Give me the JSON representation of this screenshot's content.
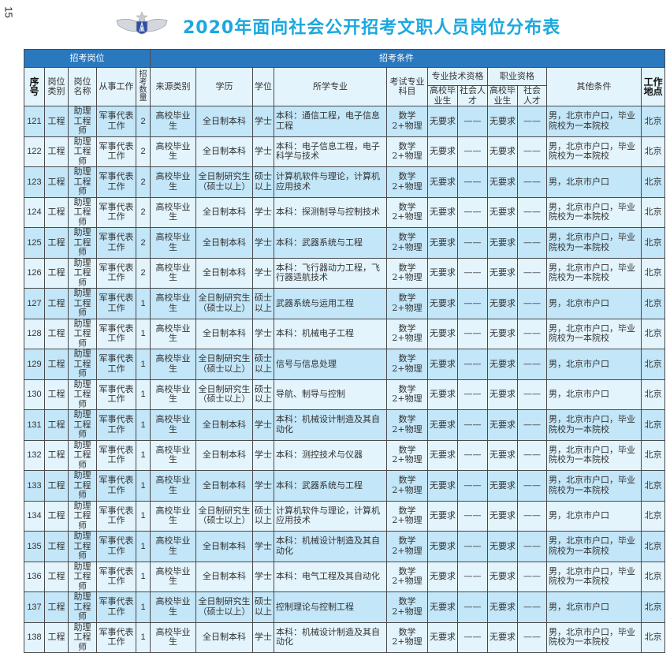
{
  "page_number": "15",
  "title": "2020年面向社会公开招考文职人员岗位分布表",
  "colors": {
    "header_band": "#2a78bd",
    "title": "#1ba8e0",
    "row_dark": "#c3e6f8",
    "row_light": "#e3f4fc"
  },
  "header": {
    "group_position": "招考岗位",
    "group_conditions": "招考条件",
    "seq": "序号",
    "category": "岗位类别",
    "name": "岗位名称",
    "work": "从事工作",
    "count": "招考数量",
    "source": "来源类别",
    "education": "学历",
    "degree": "学位",
    "major": "所学专业",
    "exam": "考试专业科目",
    "tech_qual": "专业技术资格",
    "job_qual": "职业资格",
    "graduate": "高校毕业生",
    "social": "社会人才",
    "other": "其他条件",
    "location": "工作地点"
  },
  "rows": [
    {
      "seq": "121",
      "category": "工程",
      "name": "助理工程师",
      "work": "军事代表工作",
      "count": "2",
      "source": "高校毕业生",
      "education": "全日制本科",
      "degree": "学士",
      "major": "本科：通信工程，电子信息工程",
      "exam": "数学2+物理",
      "tech_grad": "无要求",
      "tech_social": "——",
      "job_grad": "无要求",
      "job_social": "——",
      "other": "男，北京市户口，毕业院校为一本院校",
      "location": "北京"
    },
    {
      "seq": "122",
      "category": "工程",
      "name": "助理工程师",
      "work": "军事代表工作",
      "count": "2",
      "source": "高校毕业生",
      "education": "全日制本科",
      "degree": "学士",
      "major": "本科：电子信息工程，电子科学与技术",
      "exam": "数学2+物理",
      "tech_grad": "无要求",
      "tech_social": "——",
      "job_grad": "无要求",
      "job_social": "——",
      "other": "男，北京市户口，毕业院校为一本院校",
      "location": "北京"
    },
    {
      "seq": "123",
      "category": "工程",
      "name": "助理工程师",
      "work": "军事代表工作",
      "count": "2",
      "source": "高校毕业生",
      "education": "全日制研究生（硕士以上）",
      "degree": "硕士以上",
      "major": "计算机软件与理论，计算机应用技术",
      "exam": "数学2+物理",
      "tech_grad": "无要求",
      "tech_social": "——",
      "job_grad": "无要求",
      "job_social": "——",
      "other": "男，北京市户口",
      "location": "北京"
    },
    {
      "seq": "124",
      "category": "工程",
      "name": "助理工程师",
      "work": "军事代表工作",
      "count": "2",
      "source": "高校毕业生",
      "education": "全日制本科",
      "degree": "学士",
      "major": "本科：探测制导与控制技术",
      "exam": "数学2+物理",
      "tech_grad": "无要求",
      "tech_social": "——",
      "job_grad": "无要求",
      "job_social": "——",
      "other": "男，北京市户口，毕业院校为一本院校",
      "location": "北京"
    },
    {
      "seq": "125",
      "category": "工程",
      "name": "助理工程师",
      "work": "军事代表工作",
      "count": "2",
      "source": "高校毕业生",
      "education": "全日制本科",
      "degree": "学士",
      "major": "本科：武器系统与工程",
      "exam": "数学2+物理",
      "tech_grad": "无要求",
      "tech_social": "——",
      "job_grad": "无要求",
      "job_social": "——",
      "other": "男，北京市户口，毕业院校为一本院校",
      "location": "北京"
    },
    {
      "seq": "126",
      "category": "工程",
      "name": "助理工程师",
      "work": "军事代表工作",
      "count": "2",
      "source": "高校毕业生",
      "education": "全日制本科",
      "degree": "学士",
      "major": "本科：飞行器动力工程，飞行器适航技术",
      "exam": "数学2+物理",
      "tech_grad": "无要求",
      "tech_social": "——",
      "job_grad": "无要求",
      "job_social": "——",
      "other": "男，北京市户口，毕业院校为一本院校",
      "location": "北京"
    },
    {
      "seq": "127",
      "category": "工程",
      "name": "助理工程师",
      "work": "军事代表工作",
      "count": "1",
      "source": "高校毕业生",
      "education": "全日制研究生（硕士以上）",
      "degree": "硕士以上",
      "major": "武器系统与运用工程",
      "exam": "数学2+物理",
      "tech_grad": "无要求",
      "tech_social": "——",
      "job_grad": "无要求",
      "job_social": "——",
      "other": "男，北京市户口",
      "location": "北京"
    },
    {
      "seq": "128",
      "category": "工程",
      "name": "助理工程师",
      "work": "军事代表工作",
      "count": "1",
      "source": "高校毕业生",
      "education": "全日制本科",
      "degree": "学士",
      "major": "本科：机械电子工程",
      "exam": "数学2+物理",
      "tech_grad": "无要求",
      "tech_social": "——",
      "job_grad": "无要求",
      "job_social": "——",
      "other": "男，北京市户口，毕业院校为一本院校",
      "location": "北京"
    },
    {
      "seq": "129",
      "category": "工程",
      "name": "助理工程师",
      "work": "军事代表工作",
      "count": "1",
      "source": "高校毕业生",
      "education": "全日制研究生（硕士以上）",
      "degree": "硕士以上",
      "major": "信号与信息处理",
      "exam": "数学2+物理",
      "tech_grad": "无要求",
      "tech_social": "——",
      "job_grad": "无要求",
      "job_social": "——",
      "other": "男，北京市户口",
      "location": "北京"
    },
    {
      "seq": "130",
      "category": "工程",
      "name": "助理工程师",
      "work": "军事代表工作",
      "count": "1",
      "source": "高校毕业生",
      "education": "全日制研究生（硕士以上）",
      "degree": "硕士以上",
      "major": "导航、制导与控制",
      "exam": "数学2+物理",
      "tech_grad": "无要求",
      "tech_social": "——",
      "job_grad": "无要求",
      "job_social": "——",
      "other": "男，北京市户口",
      "location": "北京"
    },
    {
      "seq": "131",
      "category": "工程",
      "name": "助理工程师",
      "work": "军事代表工作",
      "count": "1",
      "source": "高校毕业生",
      "education": "全日制本科",
      "degree": "学士",
      "major": "本科：机械设计制造及其自动化",
      "exam": "数学2+物理",
      "tech_grad": "无要求",
      "tech_social": "——",
      "job_grad": "无要求",
      "job_social": "——",
      "other": "男，北京市户口，毕业院校为一本院校",
      "location": "北京"
    },
    {
      "seq": "132",
      "category": "工程",
      "name": "助理工程师",
      "work": "军事代表工作",
      "count": "1",
      "source": "高校毕业生",
      "education": "全日制本科",
      "degree": "学士",
      "major": "本科：测控技术与仪器",
      "exam": "数学2+物理",
      "tech_grad": "无要求",
      "tech_social": "——",
      "job_grad": "无要求",
      "job_social": "——",
      "other": "男，北京市户口，毕业院校为一本院校",
      "location": "北京"
    },
    {
      "seq": "133",
      "category": "工程",
      "name": "助理工程师",
      "work": "军事代表工作",
      "count": "1",
      "source": "高校毕业生",
      "education": "全日制本科",
      "degree": "学士",
      "major": "本科：武器系统与工程",
      "exam": "数学2+物理",
      "tech_grad": "无要求",
      "tech_social": "——",
      "job_grad": "无要求",
      "job_social": "——",
      "other": "男，北京市户口，毕业院校为一本院校",
      "location": "北京"
    },
    {
      "seq": "134",
      "category": "工程",
      "name": "助理工程师",
      "work": "军事代表工作",
      "count": "1",
      "source": "高校毕业生",
      "education": "全日制研究生（硕士以上）",
      "degree": "硕士以上",
      "major": "计算机软件与理论，计算机应用技术",
      "exam": "数学2+物理",
      "tech_grad": "无要求",
      "tech_social": "——",
      "job_grad": "无要求",
      "job_social": "——",
      "other": "男，北京市户口",
      "location": "北京"
    },
    {
      "seq": "135",
      "category": "工程",
      "name": "助理工程师",
      "work": "军事代表工作",
      "count": "1",
      "source": "高校毕业生",
      "education": "全日制本科",
      "degree": "学士",
      "major": "本科：机械设计制造及其自动化",
      "exam": "数学2+物理",
      "tech_grad": "无要求",
      "tech_social": "——",
      "job_grad": "无要求",
      "job_social": "——",
      "other": "男，北京市户口，毕业院校为一本院校",
      "location": "北京"
    },
    {
      "seq": "136",
      "category": "工程",
      "name": "助理工程师",
      "work": "军事代表工作",
      "count": "1",
      "source": "高校毕业生",
      "education": "全日制本科",
      "degree": "学士",
      "major": "本科：电气工程及其自动化",
      "exam": "数学2+物理",
      "tech_grad": "无要求",
      "tech_social": "——",
      "job_grad": "无要求",
      "job_social": "——",
      "other": "男，北京市户口，毕业院校为一本院校",
      "location": "北京"
    },
    {
      "seq": "137",
      "category": "工程",
      "name": "助理工程师",
      "work": "军事代表工作",
      "count": "1",
      "source": "高校毕业生",
      "education": "全日制研究生（硕士以上）",
      "degree": "硕士以上",
      "major": "控制理论与控制工程",
      "exam": "数学2+物理",
      "tech_grad": "无要求",
      "tech_social": "——",
      "job_grad": "无要求",
      "job_social": "——",
      "other": "男，北京市户口",
      "location": "北京"
    },
    {
      "seq": "138",
      "category": "工程",
      "name": "助理工程师",
      "work": "军事代表工作",
      "count": "1",
      "source": "高校毕业生",
      "education": "全日制本科",
      "degree": "学士",
      "major": "本科：机械设计制造及其自动化",
      "exam": "数学2+物理",
      "tech_grad": "无要求",
      "tech_social": "——",
      "job_grad": "无要求",
      "job_social": "——",
      "other": "男，北京市户口，毕业院校为一本院校",
      "location": "北京"
    }
  ]
}
